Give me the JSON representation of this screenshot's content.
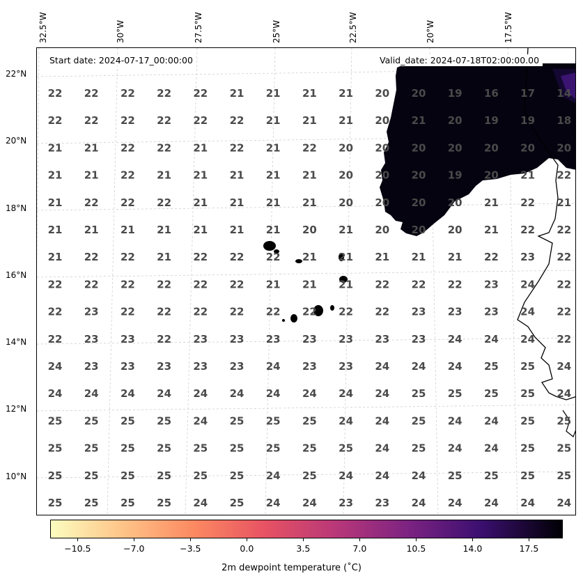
{
  "header": {
    "start_date": "Start date: 2024-07-17_00:00:00",
    "valid_date": "Valid_date: 2024-07-18T02:00:00.00"
  },
  "axes": {
    "lon_labels": [
      "32.5°W",
      "30°W",
      "27.5°W",
      "25°W",
      "22.5°W",
      "20°W",
      "17.5°W"
    ],
    "lat_labels": [
      "22°N",
      "20°N",
      "18°N",
      "16°N",
      "14°N",
      "12°N",
      "10°N"
    ]
  },
  "colorbar": {
    "title": "2m dewpoint temperature ($^\\circ$C)",
    "title_display": "2m dewpoint temperature (˚C)",
    "ticks": [
      "−10.5",
      "−7.0",
      "−3.5",
      "0.0",
      "3.5",
      "7.0",
      "10.5",
      "14.0",
      "17.5"
    ],
    "cmap": "magma_r",
    "colors": [
      "#fcfdbf",
      "#fc8961",
      "#b73779",
      "#3b0f70",
      "#000004"
    ]
  },
  "grid_values": {
    "rows": [
      [
        "22",
        "22",
        "22",
        "22",
        "22",
        "21",
        "21",
        "21",
        "21",
        "20",
        "20",
        "19",
        "16",
        "17",
        "14"
      ],
      [
        "22",
        "22",
        "22",
        "22",
        "22",
        "22",
        "21",
        "21",
        "21",
        "20",
        "21",
        "20",
        "19",
        "19",
        "18"
      ],
      [
        "21",
        "21",
        "22",
        "22",
        "21",
        "22",
        "21",
        "22",
        "20",
        "20",
        "20",
        "20",
        "20",
        "20",
        "20"
      ],
      [
        "21",
        "21",
        "22",
        "21",
        "21",
        "21",
        "21",
        "21",
        "20",
        "20",
        "20",
        "19",
        "20",
        "21",
        "22"
      ],
      [
        "21",
        "22",
        "22",
        "22",
        "21",
        "21",
        "21",
        "21",
        "20",
        "20",
        "20",
        "20",
        "21",
        "22",
        "21"
      ],
      [
        "21",
        "21",
        "21",
        "21",
        "21",
        "21",
        "21",
        "20",
        "21",
        "20",
        "20",
        "20",
        "21",
        "22",
        "22"
      ],
      [
        "21",
        "22",
        "22",
        "21",
        "22",
        "22",
        "22",
        "21",
        "21",
        "21",
        "21",
        "21",
        "22",
        "23",
        "22"
      ],
      [
        "22",
        "22",
        "22",
        "22",
        "22",
        "22",
        "21",
        "21",
        "21",
        "22",
        "22",
        "22",
        "23",
        "24",
        "22"
      ],
      [
        "22",
        "23",
        "22",
        "22",
        "22",
        "22",
        "22",
        "22",
        "22",
        "22",
        "23",
        "23",
        "23",
        "24",
        "22"
      ],
      [
        "22",
        "23",
        "23",
        "22",
        "23",
        "23",
        "23",
        "23",
        "23",
        "23",
        "23",
        "24",
        "24",
        "24",
        "22"
      ],
      [
        "24",
        "23",
        "23",
        "23",
        "23",
        "23",
        "24",
        "23",
        "23",
        "24",
        "24",
        "24",
        "25",
        "25",
        "24"
      ],
      [
        "24",
        "24",
        "24",
        "24",
        "24",
        "24",
        "24",
        "24",
        "24",
        "24",
        "25",
        "25",
        "25",
        "25",
        "24"
      ],
      [
        "25",
        "25",
        "25",
        "25",
        "24",
        "25",
        "25",
        "25",
        "24",
        "24",
        "25",
        "24",
        "24",
        "25",
        "25"
      ],
      [
        "25",
        "25",
        "25",
        "25",
        "25",
        "25",
        "25",
        "25",
        "25",
        "24",
        "25",
        "24",
        "24",
        "25",
        "25"
      ],
      [
        "25",
        "25",
        "25",
        "25",
        "25",
        "25",
        "24",
        "25",
        "24",
        "24",
        "24",
        "25",
        "25",
        "25",
        "25"
      ],
      [
        "25",
        "25",
        "25",
        "25",
        "24",
        "25",
        "24",
        "24",
        "23",
        "23",
        "24",
        "24",
        "24",
        "24",
        "24"
      ]
    ]
  }
}
